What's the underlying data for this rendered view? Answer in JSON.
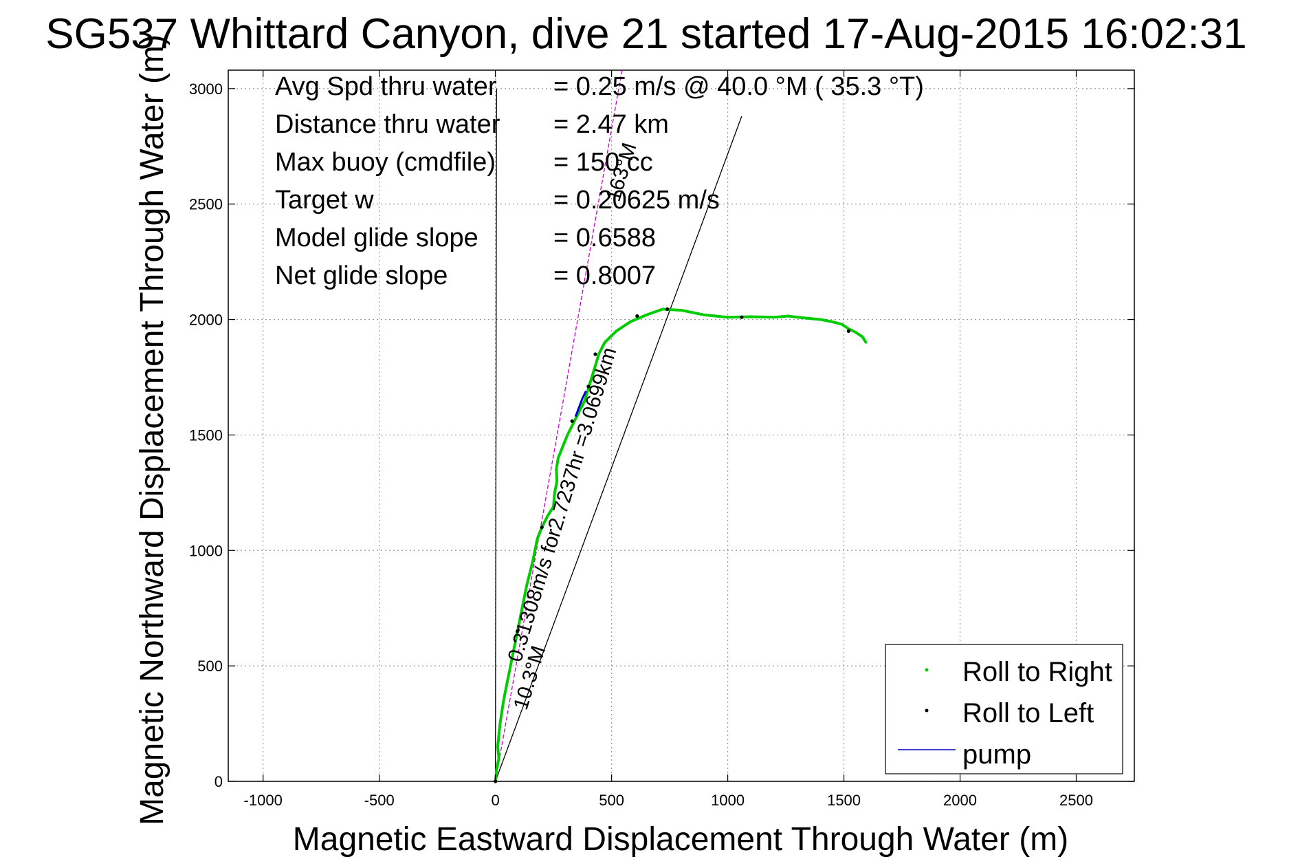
{
  "chart_data": {
    "type": "line",
    "title": "SG537 Whittard Canyon, dive 21 started 17-Aug-2015 16:02:31",
    "xlabel": "Magnetic Eastward Displacement Through Water (m)",
    "ylabel": "Magnetic Northward Displacement Through Water (m)",
    "xlim": [
      -1150,
      2750
    ],
    "ylim": [
      0,
      3080
    ],
    "xticks": [
      -1000,
      -500,
      0,
      500,
      1000,
      1500,
      2000,
      2500
    ],
    "yticks": [
      0,
      500,
      1000,
      1500,
      2000,
      2500,
      3000
    ],
    "grid": true,
    "legend_placement": "bottom-right",
    "colors": {
      "roll_right": "#00cc00",
      "roll_left": "#000000",
      "pump": "#0000cc",
      "course_line": "#cc00cc",
      "ref_line": "#000000"
    },
    "series": [
      {
        "name": "Roll to Right",
        "x": [
          0,
          5,
          15,
          10,
          20,
          35,
          55,
          75,
          95,
          115,
          135,
          160,
          180,
          200,
          225,
          250,
          255,
          265,
          262,
          270,
          290,
          310,
          335,
          360,
          385,
          400,
          415,
          430,
          445,
          470,
          520,
          580,
          650,
          720,
          800,
          900,
          1000,
          1100,
          1200,
          1260,
          1300,
          1400,
          1450,
          1490,
          1520,
          1550,
          1580,
          1595
        ],
        "y": [
          0,
          50,
          100,
          150,
          250,
          350,
          450,
          550,
          650,
          750,
          850,
          950,
          1050,
          1100,
          1150,
          1190,
          1250,
          1300,
          1350,
          1400,
          1450,
          1500,
          1550,
          1600,
          1650,
          1700,
          1750,
          1800,
          1850,
          1900,
          1950,
          1990,
          2020,
          2045,
          2040,
          2020,
          2010,
          2012,
          2010,
          2015,
          2010,
          2000,
          1990,
          1980,
          1960,
          1945,
          1925,
          1900
        ]
      },
      {
        "name": "Roll to Left",
        "x": [
          0,
          95,
          200,
          330,
          400,
          430,
          610,
          740,
          1060,
          1520
        ],
        "y": [
          0,
          650,
          1100,
          1560,
          1710,
          1850,
          2015,
          2045,
          2010,
          1950
        ]
      },
      {
        "name": "pump",
        "x": [
          345,
          360,
          375,
          390
        ],
        "y": [
          1580,
          1620,
          1660,
          1690
        ]
      }
    ],
    "reference_lines": [
      {
        "x": [
          0,
          1060
        ],
        "y": [
          0,
          2880
        ]
      },
      {
        "x": [
          0,
          545
        ],
        "y": [
          0,
          3080
        ]
      },
      {
        "x": [
          0,
          5
        ],
        "y": [
          0,
          3000
        ]
      }
    ],
    "annotations": {
      "stats": [
        {
          "label": "Avg Spd thru water",
          "value": "=  0.25 m/s @  40.0 °M ( 35.3 °T)"
        },
        {
          "label": "Distance thru water",
          "value": "=  2.47 km"
        },
        {
          "label": "Max buoy (cmdfile)",
          "value": "= 150 cc"
        },
        {
          "label": "Target w",
          "value": "= 0.20625 m/s"
        },
        {
          "label": "Model glide slope",
          "value": "= 0.6588"
        },
        {
          "label": "Net glide slope",
          "value": "= 0.8007"
        }
      ],
      "rotated": [
        {
          "text": "0.31308m/s for2.7237hr =3.0699km",
          "x": 315,
          "y": 1190
        },
        {
          "text": "10.3°M",
          "x": 175,
          "y": 440
        },
        {
          "text": "163°M",
          "x": 570,
          "y": 2630
        }
      ]
    }
  }
}
